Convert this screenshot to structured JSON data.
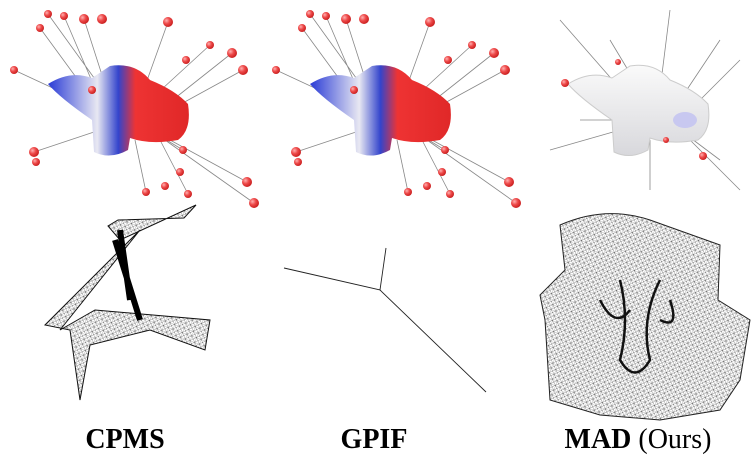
{
  "columns": [
    {
      "label": "CPMS"
    },
    {
      "label": "GPIF"
    },
    {
      "label": "MAD",
      "suffix": "(Ours)"
    }
  ]
}
